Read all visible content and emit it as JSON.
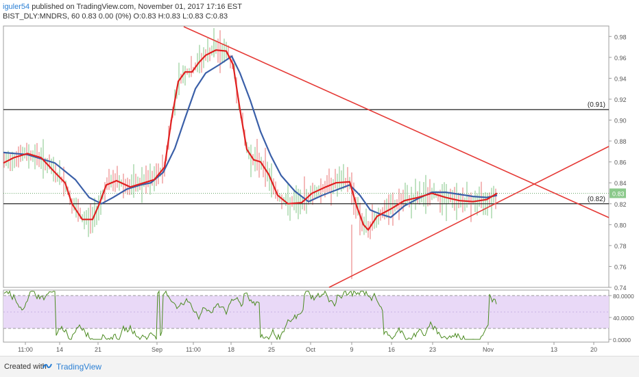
{
  "header": {
    "user": "iguler54",
    "published": " published on TradingView.com, November 01, 2017 17:16 EST",
    "symbol_line": "BIST_DLY:MNDRS, 60  0.83 0.00 (0%)  O:0.83 H:0.83 L:0.83 C:0.83"
  },
  "footer": {
    "created": "Created with",
    "brand": "TradingView"
  },
  "colors": {
    "bull": "#a5d6a7",
    "bear": "#ef9a9a",
    "fast_ma": "#e02020",
    "slow_ma": "#3a5fa8",
    "trend": "#e53935",
    "rsi": "#4a8a1f",
    "rsi_band": "#e9d9f7"
  },
  "chart_data": [
    {
      "type": "line",
      "title": "BIST_DLY:MNDRS, 60",
      "ylim": [
        0.74,
        0.99
      ],
      "y_ticks": [
        "0.98",
        "0.96",
        "0.94",
        "0.92",
        "0.90",
        "0.88",
        "0.86",
        "0.84",
        "0.82",
        "0.80",
        "0.78",
        "0.76",
        "0.74"
      ],
      "last_price_label": "0.83",
      "x_ticks": [
        "11:00",
        "14",
        "21",
        "Sep",
        "11:00",
        "18",
        "25",
        "Oct",
        "9",
        "16",
        "23",
        "Nov",
        "13",
        "20"
      ],
      "series": [],
      "fast_ma": [
        [
          5,
          0.859
        ],
        [
          20,
          0.864
        ],
        [
          40,
          0.868
        ],
        [
          60,
          0.864
        ],
        [
          80,
          0.85
        ],
        [
          95,
          0.84
        ],
        [
          105,
          0.82
        ],
        [
          120,
          0.805
        ],
        [
          135,
          0.805
        ],
        [
          145,
          0.82
        ],
        [
          155,
          0.838
        ],
        [
          170,
          0.842
        ],
        [
          190,
          0.836
        ],
        [
          210,
          0.84
        ],
        [
          225,
          0.843
        ],
        [
          240,
          0.855
        ],
        [
          250,
          0.9
        ],
        [
          260,
          0.937
        ],
        [
          270,
          0.946
        ],
        [
          280,
          0.946
        ],
        [
          290,
          0.955
        ],
        [
          300,
          0.962
        ],
        [
          315,
          0.967
        ],
        [
          330,
          0.966
        ],
        [
          340,
          0.953
        ],
        [
          350,
          0.91
        ],
        [
          360,
          0.872
        ],
        [
          370,
          0.862
        ],
        [
          380,
          0.86
        ],
        [
          392,
          0.848
        ],
        [
          405,
          0.828
        ],
        [
          420,
          0.82
        ],
        [
          440,
          0.821
        ],
        [
          455,
          0.83
        ],
        [
          475,
          0.836
        ],
        [
          490,
          0.84
        ],
        [
          510,
          0.841
        ],
        [
          520,
          0.818
        ],
        [
          530,
          0.8
        ],
        [
          537,
          0.795
        ],
        [
          550,
          0.808
        ],
        [
          570,
          0.815
        ],
        [
          590,
          0.823
        ],
        [
          610,
          0.826
        ],
        [
          630,
          0.83
        ],
        [
          650,
          0.826
        ],
        [
          670,
          0.823
        ],
        [
          690,
          0.822
        ],
        [
          710,
          0.824
        ],
        [
          725,
          0.83
        ]
      ],
      "slow_ma": [
        [
          5,
          0.869
        ],
        [
          40,
          0.867
        ],
        [
          80,
          0.859
        ],
        [
          110,
          0.843
        ],
        [
          130,
          0.826
        ],
        [
          148,
          0.82
        ],
        [
          165,
          0.826
        ],
        [
          185,
          0.834
        ],
        [
          205,
          0.838
        ],
        [
          220,
          0.84
        ],
        [
          238,
          0.85
        ],
        [
          255,
          0.873
        ],
        [
          270,
          0.902
        ],
        [
          285,
          0.93
        ],
        [
          300,
          0.945
        ],
        [
          320,
          0.953
        ],
        [
          338,
          0.961
        ],
        [
          350,
          0.945
        ],
        [
          365,
          0.919
        ],
        [
          380,
          0.889
        ],
        [
          395,
          0.866
        ],
        [
          410,
          0.847
        ],
        [
          430,
          0.832
        ],
        [
          450,
          0.822
        ],
        [
          470,
          0.828
        ],
        [
          490,
          0.833
        ],
        [
          510,
          0.838
        ],
        [
          525,
          0.828
        ],
        [
          540,
          0.814
        ],
        [
          555,
          0.81
        ],
        [
          570,
          0.807
        ],
        [
          590,
          0.818
        ],
        [
          610,
          0.825
        ],
        [
          630,
          0.831
        ],
        [
          650,
          0.831
        ],
        [
          670,
          0.829
        ],
        [
          690,
          0.827
        ],
        [
          710,
          0.826
        ],
        [
          725,
          0.828
        ]
      ],
      "h_levels": [
        {
          "value": 0.91,
          "label": "(0.91)"
        },
        {
          "value": 0.82,
          "label": "(0.82)"
        }
      ]
    },
    {
      "type": "line",
      "title": "",
      "ylim": [
        -5,
        90
      ],
      "y_ticks": [
        "80.0000",
        "40.0000",
        "0.0000"
      ],
      "overbought": 80,
      "oversold": 20
    }
  ]
}
